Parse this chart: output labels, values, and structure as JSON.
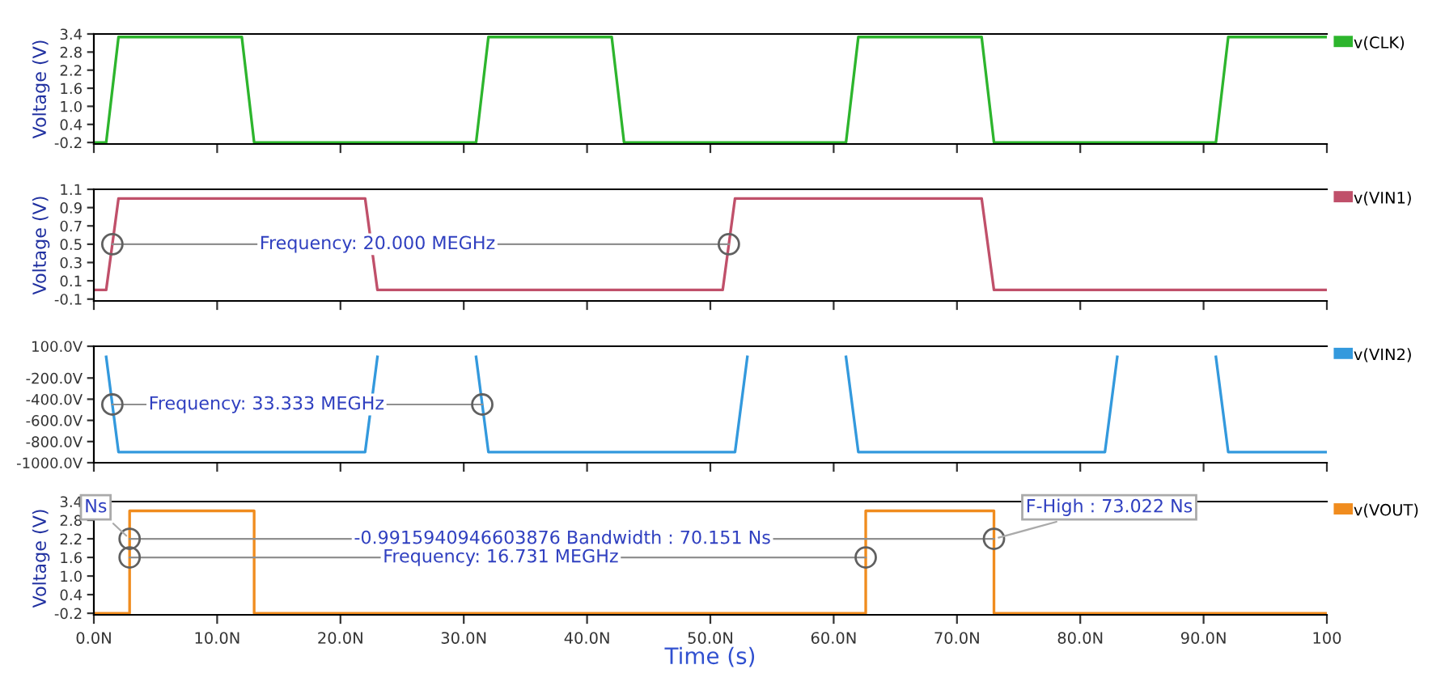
{
  "chart_data": [
    {
      "type": "line",
      "ylabel": "Voltage (V)",
      "xlim": [
        0,
        100
      ],
      "xticks": [
        0,
        10,
        20,
        30,
        40,
        50,
        60,
        70,
        80,
        90,
        100
      ],
      "ylim": [
        -0.25,
        3.4
      ],
      "yticks": [
        -0.2,
        0.4,
        {
          "value": 1,
          "label": "1.0"
        },
        1.6,
        2.2,
        2.8,
        3.4
      ],
      "tick_labels": "y",
      "legend": "right",
      "grid": false,
      "series": [
        {
          "name": "v(CLK)",
          "color": "#2db52d",
          "x": [
            0,
            1,
            2,
            12,
            13,
            31,
            32,
            42,
            43,
            61,
            62,
            72,
            73,
            91,
            92,
            100
          ],
          "values": [
            -0.2,
            -0.2,
            3.3,
            3.3,
            -0.2,
            -0.2,
            3.3,
            3.3,
            -0.2,
            -0.2,
            3.3,
            3.3,
            -0.2,
            -0.2,
            3.3,
            3.3
          ]
        }
      ]
    },
    {
      "type": "line",
      "ylabel": "Voltage (V)",
      "xlim": [
        0,
        100
      ],
      "xticks": [
        0,
        10,
        20,
        30,
        40,
        50,
        60,
        70,
        80,
        90,
        100
      ],
      "ylim": [
        -0.12,
        1.1
      ],
      "yticks": [
        -0.1,
        0.1,
        0.3,
        0.5,
        0.7,
        0.9,
        1.1
      ],
      "tick_labels": "y",
      "legend": "right",
      "grid": false,
      "series": [
        {
          "name": "v(VIN1)",
          "color": "#c0506a",
          "x": [
            0,
            1,
            2,
            22,
            23,
            51,
            52,
            72,
            73,
            100
          ],
          "values": [
            0,
            0,
            1.0,
            1.0,
            0,
            0,
            1.0,
            1.0,
            0,
            0
          ]
        },
        {
          "type": "line",
          "marker": "circle",
          "color": "#909090",
          "x": [
            1.5,
            51.5
          ],
          "values": [
            0.5,
            0.5
          ]
        }
      ],
      "annotations": [
        {
          "text": "Frequency: 20.000 MEGHz",
          "x": 23,
          "y": 0.5
        }
      ]
    },
    {
      "type": "line",
      "xlim": [
        0,
        100
      ],
      "xticks": [
        0,
        10,
        20,
        30,
        40,
        50,
        60,
        70,
        80,
        90,
        100
      ],
      "ylim": [
        -1000,
        100
      ],
      "yticks": [
        {
          "value": 100,
          "label": "100.0V"
        },
        {
          "value": -200,
          "label": "-200.0V"
        },
        {
          "value": -400,
          "label": "-400.0V"
        },
        {
          "value": -600,
          "label": "-600.0V"
        },
        {
          "value": -800,
          "label": "-800.0V"
        },
        {
          "value": -1000,
          "label": "-1000.0V"
        }
      ],
      "tick_labels": "y",
      "legend": "right",
      "grid": false,
      "series": [
        {
          "name": "v(VIN2)",
          "color": "#3399dd",
          "x": [
            1,
            2,
            22,
            23,
            27,
            31,
            32,
            52,
            53,
            57,
            61,
            62,
            82,
            83,
            87,
            91,
            92,
            100
          ],
          "values": [
            0,
            -900,
            -900,
            0,
            null,
            0,
            -900,
            -900,
            0,
            null,
            0,
            -900,
            -900,
            0,
            null,
            0,
            -900,
            -900
          ]
        },
        {
          "type": "line",
          "marker": "circle",
          "color": "#909090",
          "x": [
            1.5,
            31.5
          ],
          "values": [
            -450,
            -450
          ]
        }
      ],
      "annotations": [
        {
          "text": "Frequency: 33.333 MEGHz",
          "x": 14,
          "y": -450
        }
      ]
    },
    {
      "type": "line",
      "ylabel": "Voltage (V)",
      "xlabel": "Time (s)",
      "xlim": [
        0,
        100
      ],
      "xticks": [
        {
          "value": 0,
          "label": "0.0N"
        },
        {
          "value": 10,
          "label": "10.0N"
        },
        {
          "value": 20,
          "label": "20.0N"
        },
        {
          "value": 30,
          "label": "30.0N"
        },
        {
          "value": 40,
          "label": "40.0N"
        },
        {
          "value": 50,
          "label": "50.0N"
        },
        {
          "value": 60,
          "label": "60.0N"
        },
        {
          "value": 70,
          "label": "70.0N"
        },
        {
          "value": 80,
          "label": "80.0N"
        },
        {
          "value": 90,
          "label": "90.0N"
        },
        {
          "value": 100,
          "label": "100"
        }
      ],
      "ylim": [
        -0.25,
        3.4
      ],
      "yticks": [
        -0.2,
        0.4,
        {
          "value": 1,
          "label": "1.0"
        },
        1.6,
        2.2,
        2.8,
        3.4
      ],
      "legend": "right",
      "grid": false,
      "series": [
        {
          "name": "v(VOUT)",
          "color": "#f08c1e",
          "x": [
            0,
            2.9,
            2.9,
            13.0,
            13.0,
            62.6,
            62.6,
            73.0,
            73.0,
            100
          ],
          "values": [
            -0.2,
            -0.2,
            3.1,
            3.1,
            -0.2,
            -0.2,
            3.1,
            3.1,
            -0.2,
            -0.2
          ]
        },
        {
          "type": "line",
          "marker": "circle",
          "color": "#909090",
          "x": [
            2.9,
            73.0
          ],
          "values": [
            2.2,
            2.2
          ]
        },
        {
          "type": "line",
          "marker": "circle",
          "color": "#909090",
          "x": [
            2.9,
            62.6
          ],
          "values": [
            1.6,
            1.6
          ]
        }
      ],
      "annotations": [
        {
          "text": "-0.9915940946603876 Bandwidth : 70.151 Ns",
          "x": 38,
          "y": 2.2
        },
        {
          "text": "Frequency: 16.731 MEGHz",
          "x": 33,
          "y": 1.6
        },
        {
          "text": "F-High : 73.022 Ns",
          "x": 73.022,
          "y": 2.2
        },
        {
          "text": "Ns",
          "x": 2.9,
          "y": 2.2
        }
      ]
    }
  ]
}
